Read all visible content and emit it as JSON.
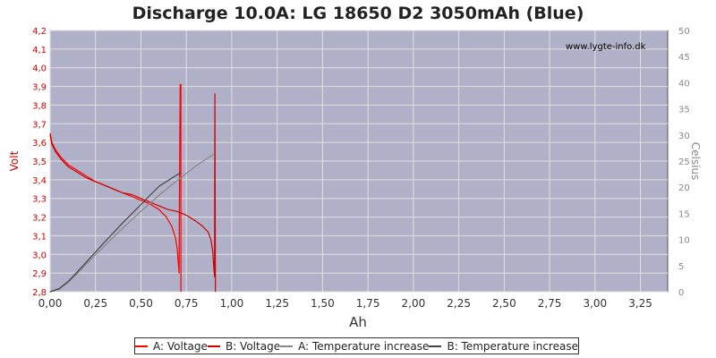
{
  "chart_data": {
    "type": "line",
    "title": "Discharge 10.0A: LG 18650 D2 3050mAh (Blue)",
    "watermark": "www.lygte-info.dk",
    "xlabel": "Ah",
    "ylabel": "Volt",
    "ylabel_right": "Celsius",
    "xlim": [
      0,
      3.4
    ],
    "ylim": [
      2.8,
      4.2
    ],
    "ylim_right": [
      0,
      50
    ],
    "x_ticks": [
      "0,00",
      "0,25",
      "0,50",
      "0,75",
      "1,00",
      "1,25",
      "1,50",
      "1,75",
      "2,00",
      "2,25",
      "2,50",
      "2,75",
      "3,00",
      "3,25"
    ],
    "y_ticks": [
      "2,8",
      "2,9",
      "3,0",
      "3,1",
      "3,2",
      "3,3",
      "3,4",
      "3,5",
      "3,6",
      "3,7",
      "3,8",
      "3,9",
      "4,0",
      "4,1",
      "4,2"
    ],
    "y_right_ticks": [
      "0",
      "5",
      "10",
      "15",
      "20",
      "25",
      "30",
      "35",
      "40",
      "45",
      "50"
    ],
    "grid": true,
    "legend_position": "bottom",
    "colors": {
      "voltage_a": "#ff0000",
      "voltage_b": "#cc0000",
      "temp_a": "#888888",
      "temp_b": "#444444",
      "plot_bg": "#b0b0c8",
      "grid": "#e0e0e0"
    },
    "series": [
      {
        "name": "A: Voltage",
        "axis": "left",
        "x": [
          0,
          0.01,
          0.03,
          0.06,
          0.1,
          0.15,
          0.2,
          0.25,
          0.3,
          0.35,
          0.4,
          0.45,
          0.5,
          0.55,
          0.6,
          0.64,
          0.67,
          0.69,
          0.7,
          0.705,
          0.71,
          0.712,
          0.714,
          0.716,
          0.72,
          0.72
        ],
        "y": [
          3.65,
          3.6,
          3.56,
          3.52,
          3.48,
          3.45,
          3.42,
          3.39,
          3.37,
          3.35,
          3.33,
          3.31,
          3.29,
          3.27,
          3.24,
          3.2,
          3.15,
          3.09,
          3.03,
          2.96,
          2.9,
          3.3,
          3.6,
          3.91,
          3.91,
          2.8
        ]
      },
      {
        "name": "B: Voltage",
        "axis": "left",
        "x": [
          0,
          0.01,
          0.03,
          0.06,
          0.1,
          0.15,
          0.2,
          0.25,
          0.3,
          0.35,
          0.4,
          0.45,
          0.5,
          0.55,
          0.6,
          0.65,
          0.7,
          0.75,
          0.8,
          0.84,
          0.87,
          0.885,
          0.895,
          0.9,
          0.905,
          0.907,
          0.91
        ],
        "y": [
          3.64,
          3.59,
          3.55,
          3.51,
          3.47,
          3.44,
          3.41,
          3.39,
          3.37,
          3.35,
          3.33,
          3.32,
          3.3,
          3.28,
          3.26,
          3.24,
          3.23,
          3.21,
          3.18,
          3.15,
          3.12,
          3.08,
          3.02,
          2.95,
          2.88,
          3.86,
          2.8
        ]
      },
      {
        "name": "A: Temperature increase",
        "axis": "right",
        "x": [
          0,
          0.05,
          0.1,
          0.15,
          0.2,
          0.3,
          0.4,
          0.5,
          0.6,
          0.7,
          0.8,
          0.9
        ],
        "y": [
          0,
          0.5,
          1.8,
          3.5,
          5.3,
          8.8,
          12.2,
          15.4,
          18.5,
          21.3,
          24,
          26.3
        ]
      },
      {
        "name": "B: Temperature increase",
        "axis": "right",
        "x": [
          0,
          0.05,
          0.1,
          0.15,
          0.2,
          0.3,
          0.4,
          0.5,
          0.6,
          0.72
        ],
        "y": [
          0,
          0.6,
          2.0,
          3.8,
          5.7,
          9.5,
          13.2,
          16.7,
          20.2,
          22.8
        ]
      }
    ]
  }
}
